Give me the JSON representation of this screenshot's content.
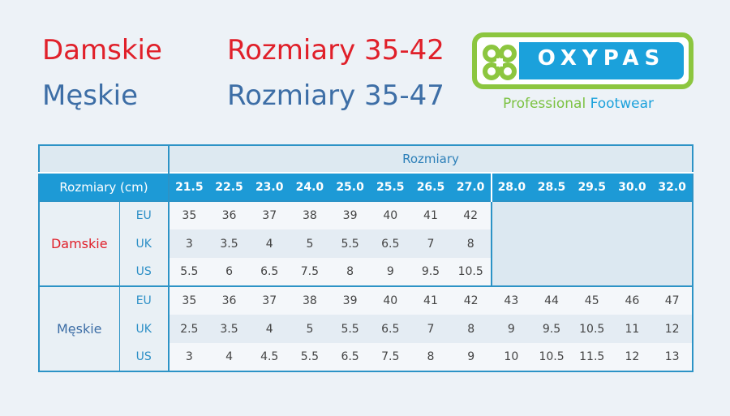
{
  "header": {
    "women_label": "Damskie",
    "women_sizes": "Rozmiary 35-42",
    "men_label": "Męskie",
    "men_sizes": "Rozmiary 35-47"
  },
  "logo": {
    "brand": "OXYPAS",
    "tagline_part1": "Professional",
    "tagline_part2": "Footwear",
    "brand_green": "#8cc63f",
    "brand_blue": "#1ba1db"
  },
  "table": {
    "title": "Rozmiary",
    "cm_label": "Rozmiary (cm)",
    "cm_values": [
      "21.5",
      "22.5",
      "23.0",
      "24.0",
      "25.0",
      "25.5",
      "26.5",
      "27.0",
      "28.0",
      "28.5",
      "29.5",
      "30.0",
      "32.0"
    ],
    "groups": [
      {
        "label": "Damskie",
        "color": "#e0202a",
        "rows": [
          {
            "type": "EU",
            "values": [
              "35",
              "36",
              "37",
              "38",
              "39",
              "40",
              "41",
              "42"
            ]
          },
          {
            "type": "UK",
            "values": [
              "3",
              "3.5",
              "4",
              "5",
              "5.5",
              "6.5",
              "7",
              "8"
            ]
          },
          {
            "type": "US",
            "values": [
              "5.5",
              "6",
              "6.5",
              "7.5",
              "8",
              "9",
              "9.5",
              "10.5"
            ]
          }
        ]
      },
      {
        "label": "Męskie",
        "color": "#3d6ea6",
        "rows": [
          {
            "type": "EU",
            "values": [
              "35",
              "36",
              "37",
              "38",
              "39",
              "40",
              "41",
              "42",
              "43",
              "44",
              "45",
              "46",
              "47"
            ]
          },
          {
            "type": "UK",
            "values": [
              "2.5",
              "3.5",
              "4",
              "5",
              "5.5",
              "6.5",
              "7",
              "8",
              "9",
              "9.5",
              "10.5",
              "11",
              "12"
            ]
          },
          {
            "type": "US",
            "values": [
              "3",
              "4",
              "4.5",
              "5.5",
              "6.5",
              "7.5",
              "8",
              "9",
              "10",
              "10.5",
              "11.5",
              "12",
              "13"
            ]
          }
        ]
      }
    ]
  }
}
